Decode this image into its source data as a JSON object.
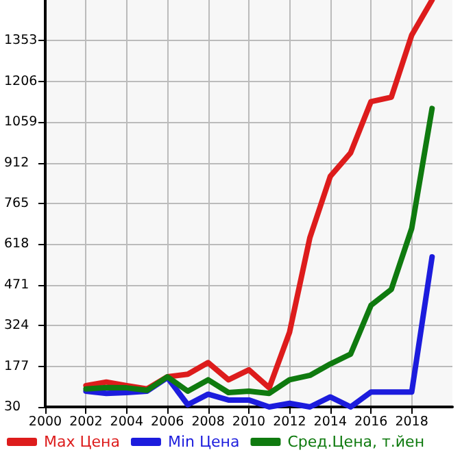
{
  "chart_data": {
    "type": "line",
    "x": [
      2002,
      2003,
      2004,
      2005,
      2006,
      2007,
      2008,
      2009,
      2010,
      2011,
      2012,
      2013,
      2014,
      2015,
      2016,
      2017,
      2018,
      2019
    ],
    "series": [
      {
        "name": "Max Цена",
        "color": "#dd1c1c",
        "values": [
          107,
          120,
          107,
          95,
          139,
          148,
          190,
          128,
          164,
          99,
          300,
          642,
          863,
          948,
          1133,
          1149,
          1373,
          1500
        ]
      },
      {
        "name": "Min Цена",
        "color": "#1c1cdd",
        "values": [
          87,
          79,
          82,
          87,
          136,
          38,
          76,
          55,
          55,
          30,
          43,
          30,
          66,
          30,
          84,
          84,
          84,
          572
        ]
      },
      {
        "name": "Сред.Цена, т.йен",
        "color": "#0f7a0f",
        "values": [
          95,
          100,
          99,
          90,
          139,
          87,
          128,
          82,
          87,
          79,
          128,
          144,
          185,
          221,
          397,
          455,
          675,
          1108
        ]
      }
    ],
    "xlim": [
      2000,
      2020
    ],
    "xticks": [
      2000,
      2002,
      2004,
      2006,
      2008,
      2010,
      2012,
      2014,
      2016,
      2018
    ],
    "ylim": [
      30,
      1500
    ],
    "yticks": [
      30,
      177,
      324,
      471,
      618,
      765,
      912,
      1059,
      1206,
      1353
    ],
    "grid": true,
    "legend": "bottom",
    "marker": "none",
    "line_style": "solid"
  }
}
